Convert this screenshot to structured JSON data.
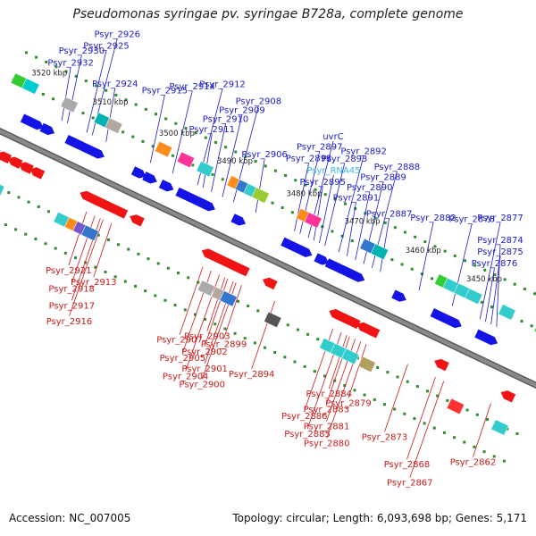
{
  "title": "Pseudomonas syringae pv. syringae B728a, complete genome",
  "accession": "Accession: NC_007005",
  "stats": "Topology: circular; Length: 6,093,698 bp; Genes: 5,171",
  "colors": {
    "backbone": "#8a8a8a",
    "forward": "#1414e6",
    "reverse": "#f01414",
    "label_forward": "#1a1acc",
    "label_reverse": "#cc1a1a",
    "label_rna": "#3db8e6",
    "tick_dot": "#2e8b2e",
    "ruler_text": "#222222"
  },
  "ruler": [
    {
      "text": "3520 kbp",
      "pos": 0.05
    },
    {
      "text": "3510 kbp",
      "pos": 0.16
    },
    {
      "text": "3500 kbp",
      "pos": 0.28
    },
    {
      "text": "3490 kbp",
      "pos": 0.385
    },
    {
      "text": "3480 kbp",
      "pos": 0.51
    },
    {
      "text": "3470 kbp",
      "pos": 0.615
    },
    {
      "text": "3460 kbp",
      "pos": 0.725
    },
    {
      "text": "3450 kbp",
      "pos": 0.835
    }
  ],
  "forward_labels": [
    {
      "text": "Psyr_2930",
      "pos": 0.11,
      "type": "gene"
    },
    {
      "text": "Psyr_2932",
      "pos": 0.1,
      "type": "gene"
    },
    {
      "text": "Psyr_2925",
      "pos": 0.145,
      "type": "gene"
    },
    {
      "text": "Psyr_2926",
      "pos": 0.155,
      "type": "gene"
    },
    {
      "text": "Psyr_2924",
      "pos": 0.18,
      "type": "gene"
    },
    {
      "text": "Psyr_2915",
      "pos": 0.26,
      "type": "gene"
    },
    {
      "text": "Psyr_2914",
      "pos": 0.3,
      "type": "gene"
    },
    {
      "text": "Psyr_2911",
      "pos": 0.355,
      "type": "gene"
    },
    {
      "text": "Psyr_2910",
      "pos": 0.37,
      "type": "gene"
    },
    {
      "text": "Psyr_2912",
      "pos": 0.345,
      "type": "gene"
    },
    {
      "text": "Psyr_2909",
      "pos": 0.39,
      "type": "gene"
    },
    {
      "text": "Psyr_2908",
      "pos": 0.41,
      "type": "gene"
    },
    {
      "text": "Psyr_2906",
      "pos": 0.45,
      "type": "gene"
    },
    {
      "text": "Psyr_2897",
      "pos": 0.53,
      "type": "gene"
    },
    {
      "text": "uvrC",
      "pos": 0.545,
      "type": "gene"
    },
    {
      "text": "Psyr_2895",
      "pos": 0.555,
      "type": "gene"
    },
    {
      "text": "Psyr_RNA45",
      "pos": 0.565,
      "type": "rna"
    },
    {
      "text": "Psyr_2898",
      "pos": 0.52,
      "type": "gene"
    },
    {
      "text": "Psyr_2893",
      "pos": 0.575,
      "type": "gene"
    },
    {
      "text": "Psyr_2892",
      "pos": 0.6,
      "type": "gene"
    },
    {
      "text": "Psyr_2891",
      "pos": 0.615,
      "type": "gene"
    },
    {
      "text": "Psyr_2890",
      "pos": 0.63,
      "type": "gene"
    },
    {
      "text": "Psyr_2889",
      "pos": 0.645,
      "type": "gene"
    },
    {
      "text": "Psyr_2888",
      "pos": 0.66,
      "type": "gene"
    },
    {
      "text": "Psyr_2887",
      "pos": 0.675,
      "type": "gene"
    },
    {
      "text": "Psyr_2882",
      "pos": 0.745,
      "type": "gene"
    },
    {
      "text": "Psyr_2878",
      "pos": 0.805,
      "type": "gene"
    },
    {
      "text": "Psyr_2877",
      "pos": 0.855,
      "type": "gene"
    },
    {
      "text": "Psyr_2876",
      "pos": 0.865,
      "type": "gene"
    },
    {
      "text": "Psyr_2875",
      "pos": 0.875,
      "type": "gene"
    },
    {
      "text": "Psyr_2874",
      "pos": 0.885,
      "type": "gene"
    }
  ],
  "reverse_labels": [
    {
      "text": "Psyr_2921",
      "pos": 0.2
    },
    {
      "text": "Psyr_2918",
      "pos": 0.215
    },
    {
      "text": "Psyr_2916",
      "pos": 0.23
    },
    {
      "text": "Psyr_2917",
      "pos": 0.225
    },
    {
      "text": "Psyr_2913",
      "pos": 0.245
    },
    {
      "text": "Psyr_2907",
      "pos": 0.41
    },
    {
      "text": "Psyr_2905",
      "pos": 0.425
    },
    {
      "text": "Psyr_2904",
      "pos": 0.44
    },
    {
      "text": "Psyr_2902",
      "pos": 0.455
    },
    {
      "text": "Psyr_2900",
      "pos": 0.47
    },
    {
      "text": "Psyr_2899",
      "pos": 0.48
    },
    {
      "text": "Psyr_2901",
      "pos": 0.465
    },
    {
      "text": "Psyr_2903",
      "pos": 0.45
    },
    {
      "text": "Psyr_2894",
      "pos": 0.54
    },
    {
      "text": "Psyr_2886",
      "pos": 0.645
    },
    {
      "text": "Psyr_2885",
      "pos": 0.66
    },
    {
      "text": "Psyr_2884",
      "pos": 0.67
    },
    {
      "text": "Psyr_2880",
      "pos": 0.695
    },
    {
      "text": "Psyr_2879",
      "pos": 0.705
    },
    {
      "text": "Psyr_2881",
      "pos": 0.685
    },
    {
      "text": "Psyr_2883",
      "pos": 0.675
    },
    {
      "text": "Psyr_2873",
      "pos": 0.78
    },
    {
      "text": "Psyr_2868",
      "pos": 0.83
    },
    {
      "text": "Psyr_2867",
      "pos": 0.845
    },
    {
      "text": "Psyr_2862",
      "pos": 0.93
    }
  ],
  "forward_arrows": [
    0.05,
    0.065,
    0.085,
    0.13,
    0.145,
    0.16,
    0.175,
    0.25,
    0.27,
    0.3,
    0.33,
    0.345,
    0.36,
    0.375,
    0.43,
    0.52,
    0.535,
    0.55,
    0.58,
    0.6,
    0.615,
    0.63,
    0.645,
    0.72,
    0.79,
    0.805,
    0.82,
    0.87,
    0.885
  ],
  "reverse_arrows": [
    0.02,
    0.04,
    0.06,
    0.08,
    0.1,
    0.19,
    0.205,
    0.22,
    0.235,
    0.25,
    0.28,
    0.41,
    0.425,
    0.44,
    0.455,
    0.47,
    0.52,
    0.64,
    0.655,
    0.67,
    0.69,
    0.705,
    0.83,
    0.95
  ],
  "forward_blocks": [
    {
      "pos": 0.01,
      "color": "#33cc33"
    },
    {
      "pos": 0.03,
      "color": "#00cccc"
    },
    {
      "pos": 0.1,
      "color": "#aaaaaa"
    },
    {
      "pos": 0.16,
      "color": "#00b3b3"
    },
    {
      "pos": 0.18,
      "color": "#b3a8a0"
    },
    {
      "pos": 0.27,
      "color": "#ff8c1a"
    },
    {
      "pos": 0.31,
      "color": "#ff3399"
    },
    {
      "pos": 0.345,
      "color": "#33cccc"
    },
    {
      "pos": 0.4,
      "color": "#ff8c1a"
    },
    {
      "pos": 0.415,
      "color": "#3377cc"
    },
    {
      "pos": 0.43,
      "color": "#33cccc"
    },
    {
      "pos": 0.445,
      "color": "#99cc33"
    },
    {
      "pos": 0.525,
      "color": "#ff8c1a"
    },
    {
      "pos": 0.54,
      "color": "#ff3399"
    },
    {
      "pos": 0.64,
      "color": "#3377cc"
    },
    {
      "pos": 0.66,
      "color": "#00b3b3"
    },
    {
      "pos": 0.775,
      "color": "#33cc33"
    },
    {
      "pos": 0.79,
      "color": "#33cccc"
    },
    {
      "pos": 0.81,
      "color": "#33cccc"
    },
    {
      "pos": 0.83,
      "color": "#33cccc"
    },
    {
      "pos": 0.89,
      "color": "#33cccc"
    },
    {
      "pos": 0.955,
      "color": "#33cc33"
    },
    {
      "pos": 0.975,
      "color": "#33cccc"
    }
  ],
  "reverse_blocks": [
    {
      "pos": 0.05,
      "color": "#33cccc"
    },
    {
      "pos": 0.17,
      "color": "#33cccc"
    },
    {
      "pos": 0.19,
      "color": "#ff8c1a"
    },
    {
      "pos": 0.205,
      "color": "#7755cc"
    },
    {
      "pos": 0.22,
      "color": "#3377cc"
    },
    {
      "pos": 0.43,
      "color": "#aaaaaa"
    },
    {
      "pos": 0.455,
      "color": "#b3a8a0"
    },
    {
      "pos": 0.47,
      "color": "#3377cc"
    },
    {
      "pos": 0.55,
      "color": "#555555"
    },
    {
      "pos": 0.65,
      "color": "#33cccc"
    },
    {
      "pos": 0.67,
      "color": "#33cccc"
    },
    {
      "pos": 0.69,
      "color": "#33cccc"
    },
    {
      "pos": 0.72,
      "color": "#b3a060"
    },
    {
      "pos": 0.88,
      "color": "#ff3333"
    },
    {
      "pos": 0.96,
      "color": "#33cccc"
    }
  ]
}
